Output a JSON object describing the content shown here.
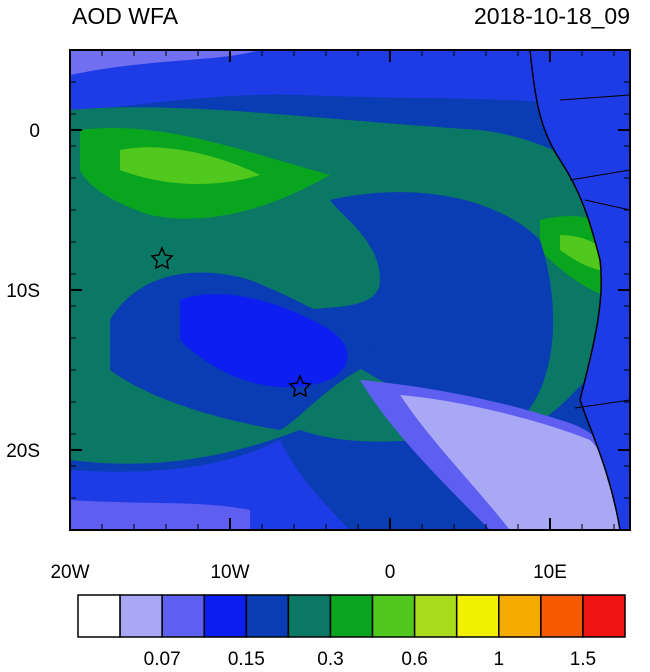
{
  "map": {
    "title": "AOD WFA",
    "date": "2018-10-18_09",
    "lonlim": [
      -20,
      15
    ],
    "latlim": [
      -25,
      5
    ],
    "xticks": [
      {
        "value": -20,
        "label": "20W"
      },
      {
        "value": -10,
        "label": "10W"
      },
      {
        "value": 0,
        "label": "0"
      },
      {
        "value": 10,
        "label": "10E"
      }
    ],
    "yticks": [
      {
        "value": 0,
        "label": "0"
      },
      {
        "value": -10,
        "label": "10S"
      },
      {
        "value": -20,
        "label": "20S"
      }
    ],
    "colorbar": {
      "colors": [
        "#ffffff",
        "#a8a8f5",
        "#5e5ef0",
        "#0c1ef0",
        "#0a3cb4",
        "#0a7864",
        "#0aa51e",
        "#50c81e",
        "#aadc1e",
        "#f0f000",
        "#f5aa00",
        "#f55a00",
        "#f01414"
      ],
      "labels": [
        0.07,
        0.15,
        0.3,
        0.6,
        1,
        1.5
      ]
    }
  }
}
